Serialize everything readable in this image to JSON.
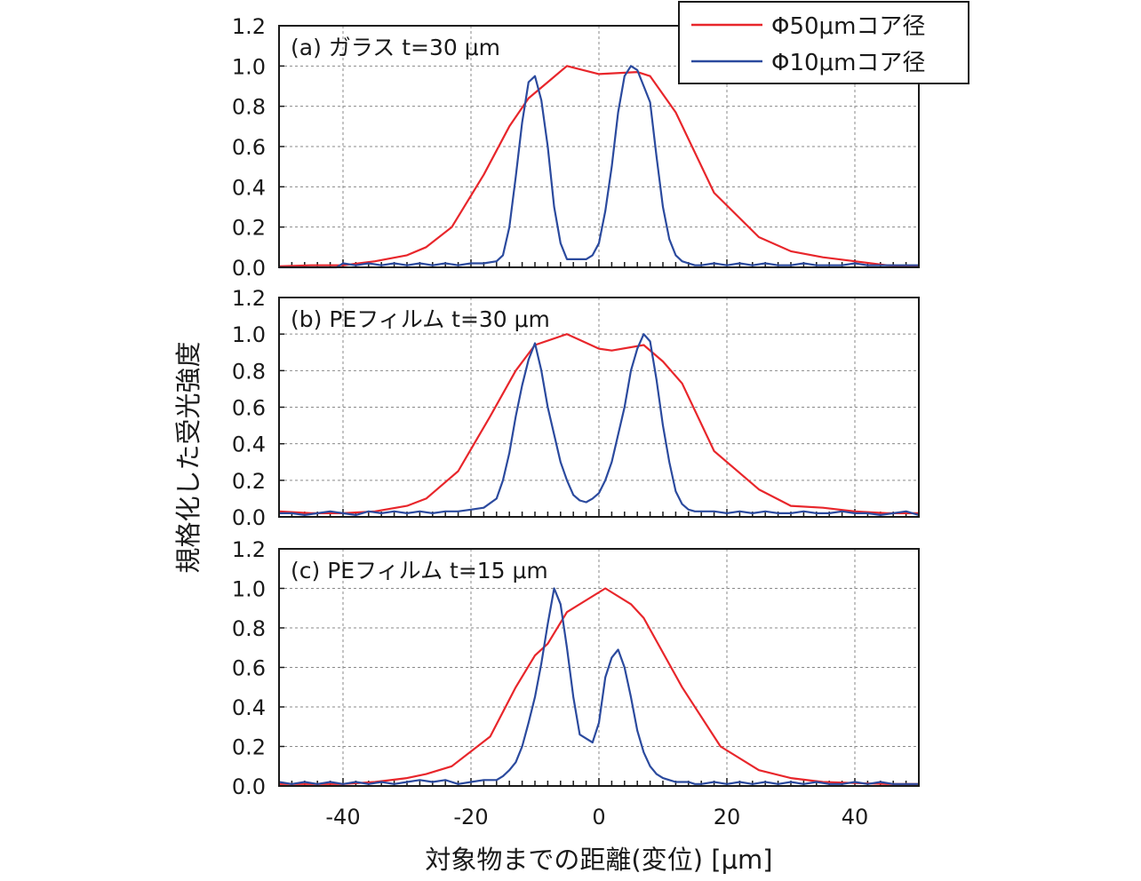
{
  "chart_data": {
    "type": "line",
    "xlabel": "対象物までの距離(変位) [μm]",
    "ylabel": "規格化した受光強度",
    "xlim": [
      -50,
      50
    ],
    "ylim": [
      0,
      1.2
    ],
    "x_ticks": [
      "-40",
      "-20",
      "0",
      "20",
      "40"
    ],
    "y_ticks": [
      "0.0",
      "0.2",
      "0.4",
      "0.6",
      "0.8",
      "1.0",
      "1.2"
    ],
    "grid": true,
    "legend_position": "top-right",
    "legend": [
      {
        "name": "Φ50μmコア径",
        "color": "#e8262b"
      },
      {
        "name": "Φ10μmコア径",
        "color": "#2b4a9e"
      }
    ],
    "panels": [
      {
        "label": "(a) ガラス t=30 μm",
        "series": [
          {
            "name": "Φ50μmコア径",
            "color": "#e8262b",
            "x": [
              -50,
              -45,
              -40,
              -35,
              -30,
              -27,
              -23,
              -18,
              -14,
              -11,
              -8,
              -5,
              0,
              6,
              8,
              12,
              18,
              25,
              30,
              35,
              40,
              45,
              50
            ],
            "y": [
              0.005,
              0.01,
              0.01,
              0.03,
              0.06,
              0.1,
              0.2,
              0.46,
              0.7,
              0.84,
              0.92,
              1.0,
              0.96,
              0.97,
              0.95,
              0.77,
              0.37,
              0.15,
              0.08,
              0.05,
              0.03,
              0.01,
              0.005
            ]
          },
          {
            "name": "Φ10μmコア径",
            "color": "#2b4a9e",
            "x": [
              -50,
              -45,
              -41,
              -40,
              -38,
              -36,
              -34,
              -32,
              -30,
              -28,
              -26,
              -24,
              -22,
              -20,
              -18,
              -16,
              -15,
              -14,
              -13,
              -12,
              -11,
              -10,
              -9,
              -8,
              -7,
              -6,
              -5,
              -4,
              -3,
              -2,
              -1,
              0,
              1,
              2,
              3,
              4,
              5,
              6,
              7,
              8,
              9,
              10,
              11,
              12,
              13,
              14,
              15,
              16,
              18,
              20,
              22,
              24,
              26,
              28,
              30,
              32,
              34,
              36,
              38,
              40,
              42,
              44,
              46,
              48,
              50
            ],
            "y": [
              0,
              0,
              0,
              0.02,
              0.01,
              0.02,
              0.01,
              0.02,
              0.01,
              0.02,
              0.01,
              0.02,
              0.01,
              0.02,
              0.02,
              0.03,
              0.06,
              0.2,
              0.45,
              0.72,
              0.92,
              0.95,
              0.83,
              0.6,
              0.3,
              0.12,
              0.04,
              0.04,
              0.04,
              0.04,
              0.06,
              0.12,
              0.28,
              0.5,
              0.77,
              0.95,
              1.0,
              0.98,
              0.9,
              0.82,
              0.55,
              0.3,
              0.14,
              0.06,
              0.03,
              0.02,
              0.01,
              0.01,
              0.02,
              0.01,
              0.02,
              0.01,
              0.02,
              0.01,
              0.01,
              0.02,
              0.01,
              0.01,
              0.01,
              0.02,
              0.01,
              0.01,
              0.01,
              0.01,
              0.01
            ]
          }
        ]
      },
      {
        "label": "(b) PEフィルム t=30 μm",
        "series": [
          {
            "name": "Φ50μmコア径",
            "color": "#e8262b",
            "x": [
              -50,
              -45,
              -40,
              -35,
              -30,
              -27,
              -22,
              -17,
              -13,
              -10,
              -5,
              0,
              2,
              7,
              10,
              13,
              18,
              25,
              30,
              35,
              40,
              45,
              50
            ],
            "y": [
              0.03,
              0.02,
              0.02,
              0.03,
              0.06,
              0.1,
              0.25,
              0.55,
              0.8,
              0.94,
              1.0,
              0.92,
              0.91,
              0.94,
              0.85,
              0.73,
              0.36,
              0.15,
              0.06,
              0.05,
              0.03,
              0.02,
              0.02
            ]
          },
          {
            "name": "Φ10μmコア径",
            "color": "#2b4a9e",
            "x": [
              -50,
              -48,
              -46,
              -44,
              -42,
              -40,
              -38,
              -36,
              -34,
              -32,
              -30,
              -28,
              -26,
              -24,
              -22,
              -20,
              -18,
              -16,
              -15,
              -14,
              -13,
              -12,
              -11,
              -10,
              -9,
              -8,
              -7,
              -6,
              -5,
              -4,
              -3,
              -2,
              -1,
              0,
              1,
              2,
              3,
              4,
              5,
              6,
              7,
              8,
              9,
              10,
              11,
              12,
              13,
              14,
              15,
              16,
              18,
              20,
              22,
              24,
              26,
              28,
              30,
              32,
              34,
              36,
              38,
              40,
              42,
              44,
              46,
              48,
              50
            ],
            "y": [
              0.02,
              0.02,
              0.01,
              0.02,
              0.03,
              0.02,
              0.01,
              0.03,
              0.02,
              0.03,
              0.02,
              0.03,
              0.02,
              0.03,
              0.03,
              0.04,
              0.05,
              0.1,
              0.2,
              0.35,
              0.55,
              0.72,
              0.86,
              0.95,
              0.8,
              0.6,
              0.45,
              0.3,
              0.2,
              0.12,
              0.09,
              0.08,
              0.1,
              0.13,
              0.2,
              0.3,
              0.45,
              0.6,
              0.8,
              0.92,
              1.0,
              0.96,
              0.75,
              0.5,
              0.3,
              0.14,
              0.07,
              0.04,
              0.03,
              0.03,
              0.03,
              0.02,
              0.03,
              0.02,
              0.03,
              0.02,
              0.02,
              0.03,
              0.02,
              0.02,
              0.03,
              0.02,
              0.02,
              0.01,
              0.02,
              0.03,
              0.01
            ]
          }
        ]
      },
      {
        "label": "(c) PEフィルム t=15 μm",
        "series": [
          {
            "name": "Φ50μmコア径",
            "color": "#e8262b",
            "x": [
              -50,
              -45,
              -40,
              -35,
              -30,
              -27,
              -23,
              -17,
              -13,
              -10,
              -8,
              -5,
              1,
              5,
              7,
              13,
              19,
              25,
              30,
              35,
              40,
              45,
              50
            ],
            "y": [
              0.01,
              0.01,
              0.01,
              0.02,
              0.04,
              0.06,
              0.1,
              0.25,
              0.5,
              0.66,
              0.72,
              0.88,
              1.0,
              0.92,
              0.85,
              0.5,
              0.2,
              0.08,
              0.04,
              0.02,
              0.015,
              0.01,
              0.01
            ]
          },
          {
            "name": "Φ10μmコア径",
            "color": "#2b4a9e",
            "x": [
              -50,
              -48,
              -46,
              -44,
              -42,
              -40,
              -38,
              -36,
              -34,
              -32,
              -30,
              -28,
              -26,
              -24,
              -22,
              -20,
              -18,
              -16,
              -15,
              -14,
              -13,
              -12,
              -11,
              -10,
              -9,
              -8,
              -7,
              -6,
              -5,
              -4,
              -3,
              -2,
              -1,
              0,
              1,
              2,
              3,
              4,
              5,
              6,
              7,
              8,
              9,
              10,
              11,
              12,
              13,
              14,
              15,
              16,
              18,
              20,
              22,
              24,
              26,
              28,
              30,
              32,
              34,
              36,
              38,
              40,
              42,
              44,
              46,
              48,
              50
            ],
            "y": [
              0.02,
              0.01,
              0.02,
              0.01,
              0.02,
              0.01,
              0.02,
              0.01,
              0.02,
              0.01,
              0.02,
              0.03,
              0.02,
              0.03,
              0.01,
              0.02,
              0.03,
              0.03,
              0.05,
              0.08,
              0.12,
              0.2,
              0.32,
              0.45,
              0.62,
              0.82,
              1.0,
              0.92,
              0.7,
              0.45,
              0.26,
              0.24,
              0.22,
              0.32,
              0.55,
              0.65,
              0.69,
              0.6,
              0.45,
              0.28,
              0.17,
              0.1,
              0.06,
              0.04,
              0.03,
              0.02,
              0.02,
              0.02,
              0.01,
              0.01,
              0.02,
              0.01,
              0.02,
              0.01,
              0.02,
              0.01,
              0.02,
              0.01,
              0.02,
              0.01,
              0.01,
              0.02,
              0.01,
              0.02,
              0.01,
              0.01,
              0.01
            ]
          }
        ]
      }
    ]
  }
}
